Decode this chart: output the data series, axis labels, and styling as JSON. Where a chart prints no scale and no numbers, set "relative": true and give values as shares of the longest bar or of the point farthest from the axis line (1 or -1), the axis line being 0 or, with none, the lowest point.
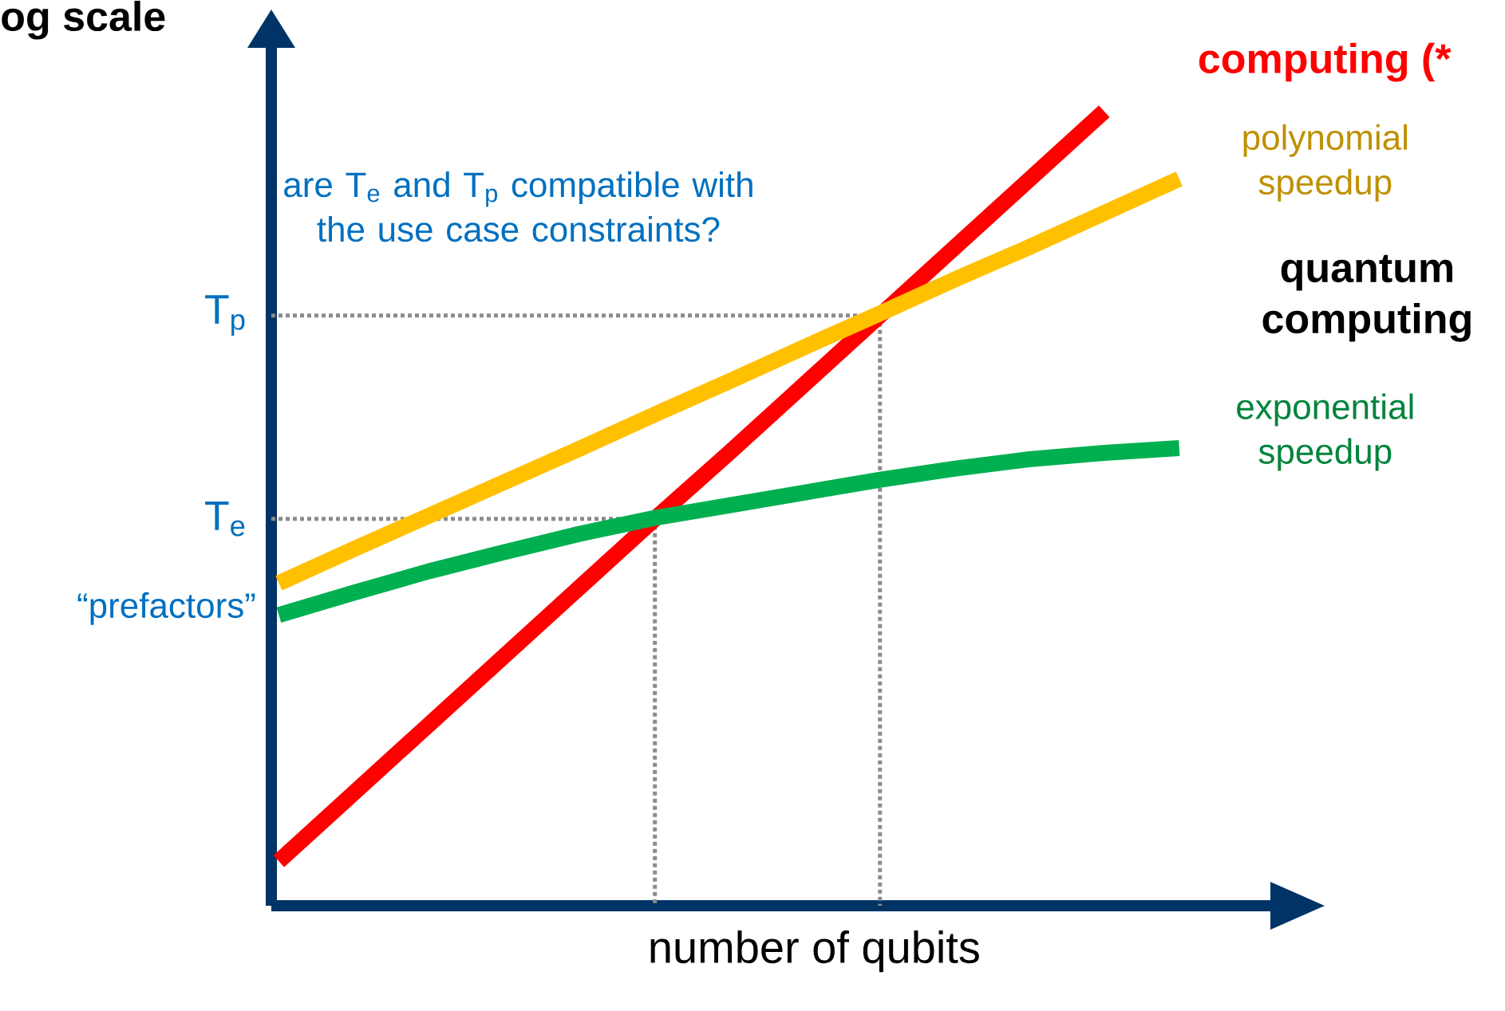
{
  "chart_data": {
    "type": "line",
    "relative": true,
    "ylabel": "og scale",
    "xlabel": "number of qubits",
    "categories": [
      null,
      null,
      null,
      null,
      null,
      null,
      null,
      null,
      null,
      null,
      null,
      null,
      null
    ],
    "series": [
      {
        "name": "computing (*",
        "color": "#ff0000",
        "values": [
          0.056,
          0.142,
          0.228,
          0.314,
          0.4,
          0.486,
          0.57,
          0.656,
          0.742,
          0.828,
          0.914,
          1,
          null
        ]
      },
      {
        "name": "polynomial speedup",
        "color": "#ffc000",
        "values": [
          0.406,
          0.449,
          0.491,
          0.533,
          0.575,
          0.618,
          0.66,
          0.703,
          0.745,
          0.788,
          0.829,
          0.872,
          0.915
        ]
      },
      {
        "name": "exponential speedup",
        "color": "#00b050",
        "values": [
          0.366,
          0.394,
          0.421,
          0.445,
          0.468,
          0.488,
          0.504,
          0.52,
          0.536,
          0.55,
          0.562,
          0.57,
          0.576
        ]
      }
    ],
    "ref_lines": [
      {
        "axis": "y",
        "value": 0.743,
        "label": "T$_{p}$",
        "color": "#8c8c8c",
        "line_style": "dotted"
      },
      {
        "axis": "y",
        "value": 0.487,
        "label": "T$_{e}$",
        "color": "#8c8c8c",
        "line_style": "dotted"
      }
    ],
    "annotations": [
      "are T$_{e}$ and T$_{p}$ compatible with the use case constraints?",
      "quantum computing",
      "“prefactors”"
    ],
    "legend": false,
    "marker": "none",
    "line_style": "solid"
  }
}
